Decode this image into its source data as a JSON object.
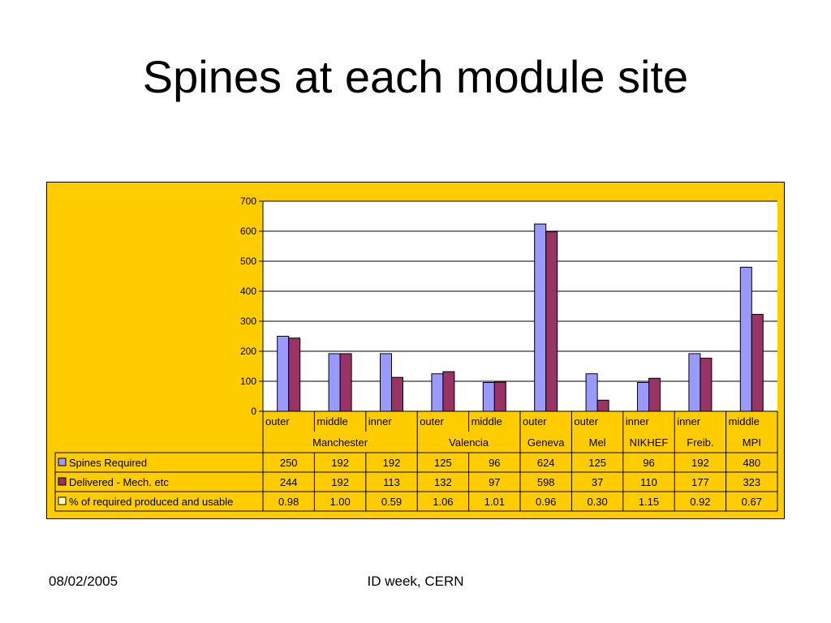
{
  "slide": {
    "title": "Spines at each module site",
    "footer_date": "08/02/2005",
    "footer_event": "ID week, CERN"
  },
  "chart_data": {
    "type": "bar",
    "categories": [
      "outer",
      "middle",
      "inner",
      "outer",
      "middle",
      "outer",
      "outer",
      "inner",
      "inner",
      "middle"
    ],
    "sites": [
      {
        "name": "Manchester",
        "span": 3
      },
      {
        "name": "Valencia",
        "span": 2
      },
      {
        "name": "Geneva",
        "span": 1
      },
      {
        "name": "Mel",
        "span": 1
      },
      {
        "name": "NIKHEF",
        "span": 1
      },
      {
        "name": "Freib.",
        "span": 1
      },
      {
        "name": "MPI",
        "span": 1
      }
    ],
    "series": [
      {
        "name": "Spines Required",
        "values": [
          250,
          192,
          192,
          125,
          96,
          624,
          125,
          96,
          192,
          480
        ],
        "color": "#9999FF",
        "plotted": true
      },
      {
        "name": "Delivered - Mech. etc",
        "values": [
          244,
          192,
          113,
          132,
          97,
          598,
          37,
          110,
          177,
          323
        ],
        "color": "#993366",
        "plotted": true
      },
      {
        "name": "% of required  produced and usable",
        "values": [
          0.98,
          1.0,
          0.59,
          1.06,
          1.01,
          0.96,
          0.3,
          1.15,
          0.92,
          0.67
        ],
        "color": "#FFFFCC",
        "plotted": false
      }
    ],
    "table_values": [
      [
        "250",
        "192",
        "192",
        "125",
        "96",
        "624",
        "125",
        "96",
        "192",
        "480"
      ],
      [
        "244",
        "192",
        "113",
        "132",
        "97",
        "598",
        "37",
        "110",
        "177",
        "323"
      ],
      [
        "0.98",
        "1.00",
        "0.59",
        "1.06",
        "1.01",
        "0.96",
        "0.30",
        "1.15",
        "0.92",
        "0.67"
      ]
    ],
    "y_ticks": [
      "0",
      "100",
      "200",
      "300",
      "400",
      "500",
      "600",
      "700"
    ],
    "ylim": [
      0,
      700
    ],
    "y_step": 100,
    "grid": true,
    "background": "#FFCC00",
    "plot_background": "#FFFFFF",
    "legend": "data-table"
  }
}
